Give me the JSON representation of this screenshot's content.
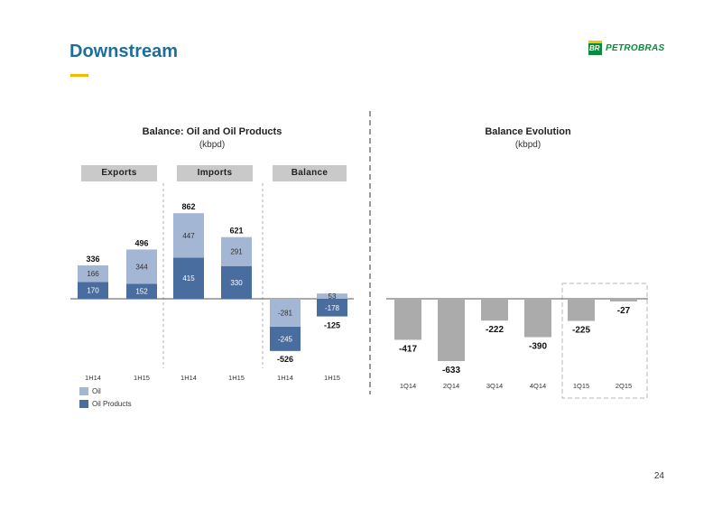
{
  "header": {
    "title": "Downstream",
    "logo_text": "PETROBRAS",
    "logo_mark": "BR"
  },
  "page_number": "24",
  "colors": {
    "oil": "#a3b6d3",
    "oil_products": "#4a6da0",
    "evolution_bar": "#ababab",
    "title": "#1f6e9a",
    "accent": "#f7b900"
  },
  "chart_data": [
    {
      "type": "bar",
      "title": "Balance: Oil and Oil Products",
      "subtitle": "(kbpd)",
      "stacked": true,
      "groups": [
        "Exports",
        "Imports",
        "Balance"
      ],
      "categories": [
        "1H14",
        "1H15",
        "1H14",
        "1H15",
        "1H14",
        "1H15"
      ],
      "series": [
        {
          "name": "Oil Products",
          "values": [
            170,
            152,
            415,
            330,
            -245,
            -178
          ]
        },
        {
          "name": "Oil",
          "values": [
            166,
            344,
            447,
            291,
            -281,
            53
          ]
        }
      ],
      "value_labels": {
        "Oil Products": [
          "170",
          "152",
          "415",
          "330",
          "-245",
          "-178"
        ],
        "Oil": [
          "166",
          "344",
          "447",
          "291",
          "-281",
          "53"
        ]
      },
      "totals": [
        "336",
        "496",
        "862",
        "621",
        "-526",
        "-125"
      ],
      "legend": [
        "Oil",
        "Oil Products"
      ],
      "legend_position": "bottom-left"
    },
    {
      "type": "bar",
      "title": "Balance Evolution",
      "subtitle": "(kbpd)",
      "categories": [
        "1Q14",
        "2Q14",
        "3Q14",
        "4Q14",
        "1Q15",
        "2Q15"
      ],
      "values": [
        -417,
        -633,
        -222,
        -390,
        -225,
        -27
      ],
      "value_labels": [
        "-417",
        "-633",
        "-222",
        "-390",
        "-225",
        "-27"
      ],
      "highlighted": [
        "1Q15",
        "2Q15"
      ]
    }
  ]
}
